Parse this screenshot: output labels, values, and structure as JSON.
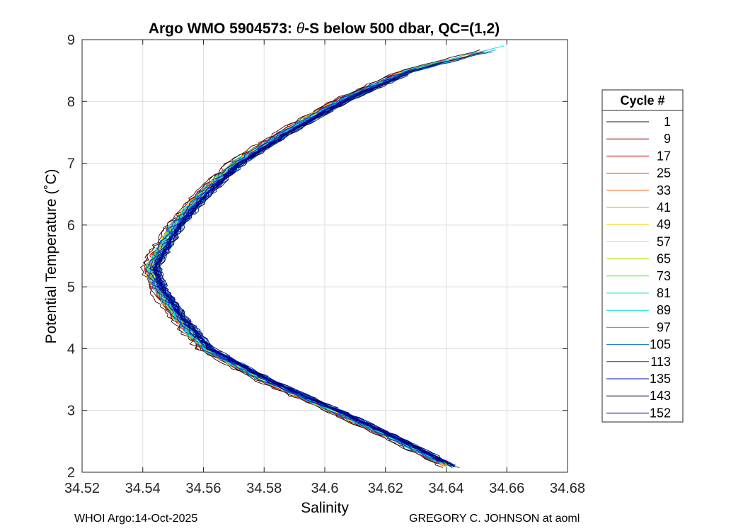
{
  "chart_data": {
    "type": "line",
    "title_prefix": "Argo WMO 5904573: ",
    "title_symbol": "θ",
    "title_suffix": "-S below 500 dbar,  QC=(1,2)",
    "xlabel": "Salinity",
    "ylabel": "Potential Temperature (˚C)",
    "xlim": [
      34.52,
      34.68
    ],
    "ylim": [
      2,
      9
    ],
    "grid": true,
    "x_ticks": [
      34.52,
      34.54,
      34.56,
      34.58,
      34.6,
      34.62,
      34.64,
      34.66,
      34.68
    ],
    "x_tick_labels": [
      "34.52",
      "34.54",
      "34.56",
      "34.58",
      "34.6",
      "34.62",
      "34.64",
      "34.66",
      "34.68"
    ],
    "y_ticks": [
      2,
      3,
      4,
      5,
      6,
      7,
      8,
      9
    ],
    "y_tick_labels": [
      "2",
      "3",
      "4",
      "5",
      "6",
      "7",
      "8",
      "9"
    ],
    "legend_title": "Cycle #",
    "legend_position": "outside-right",
    "mean_profile": {
      "theta": [
        2.05,
        2.5,
        3.0,
        3.5,
        4.0,
        4.5,
        5.0,
        5.3,
        5.5,
        6.0,
        6.5,
        7.0,
        7.5,
        8.0,
        8.5,
        8.9
      ],
      "salinity": [
        34.643,
        34.625,
        34.603,
        34.58,
        34.561,
        34.552,
        34.545,
        34.543,
        34.545,
        34.551,
        34.56,
        34.571,
        34.587,
        34.605,
        34.628,
        34.66
      ]
    },
    "series": [
      {
        "name": "1",
        "color": "#3a0000"
      },
      {
        "name": "9",
        "color": "#8b0000"
      },
      {
        "name": "17",
        "color": "#d00000"
      },
      {
        "name": "25",
        "color": "#ff1a00"
      },
      {
        "name": "33",
        "color": "#ff5500"
      },
      {
        "name": "41",
        "color": "#ff9900"
      },
      {
        "name": "49",
        "color": "#ffd000"
      },
      {
        "name": "57",
        "color": "#e8f000"
      },
      {
        "name": "65",
        "color": "#a8f000"
      },
      {
        "name": "73",
        "color": "#55f040"
      },
      {
        "name": "81",
        "color": "#10e8a0"
      },
      {
        "name": "89",
        "color": "#00e0e0"
      },
      {
        "name": "97",
        "color": "#00b0e8"
      },
      {
        "name": "105",
        "color": "#0070d0"
      },
      {
        "name": "113",
        "color": "#0040c0"
      },
      {
        "name": "135",
        "color": "#0010b0"
      },
      {
        "name": "143",
        "color": "#000040"
      },
      {
        "name": "152",
        "color": "#0000a0"
      }
    ]
  },
  "footer": {
    "left": "WHOI Argo:14-Oct-2025",
    "right": "GREGORY C. JOHNSON at aoml"
  }
}
